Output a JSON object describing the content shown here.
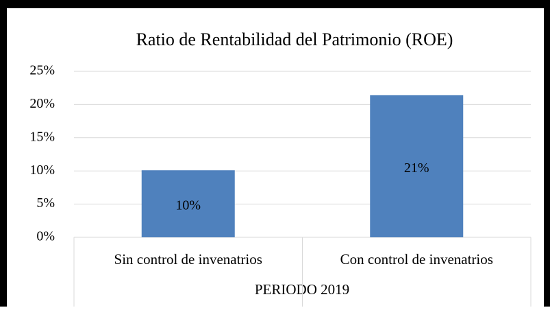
{
  "chart_data": {
    "type": "bar",
    "title": "Ratio de Rentabilidad del Patrimonio (ROE)",
    "categories": [
      "Sin control de invenatrios",
      "Con control de invenatrios"
    ],
    "values": [
      10.1,
      21.4
    ],
    "value_labels": [
      "10%",
      "21%"
    ],
    "color": "#4f81bd",
    "xlabel": "PERIODO 2019",
    "ylim": [
      0,
      25
    ],
    "yticks": [
      {
        "value": 0,
        "label": "0%"
      },
      {
        "value": 5,
        "label": "5%"
      },
      {
        "value": 10,
        "label": "10%"
      },
      {
        "value": 15,
        "label": "15%"
      },
      {
        "value": 20,
        "label": "20%"
      },
      {
        "value": 25,
        "label": "25%"
      }
    ],
    "grid": true
  }
}
